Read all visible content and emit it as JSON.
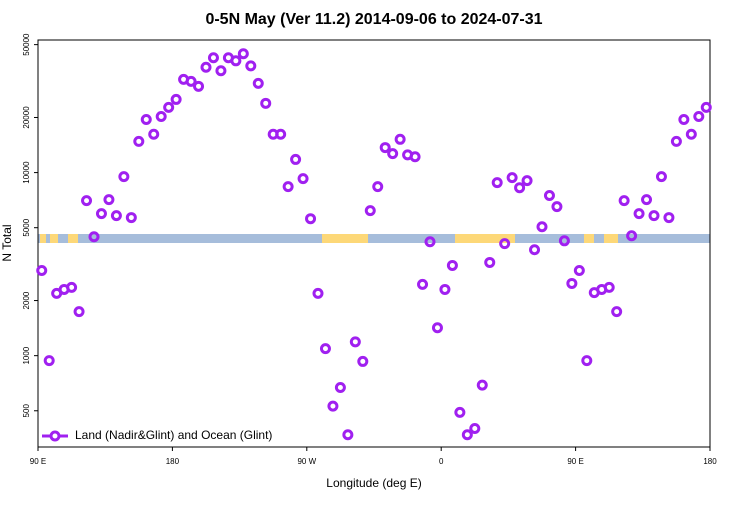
{
  "chart_data": {
    "type": "scatter",
    "title": "0-5N May (Ver 11.2)   2014-09-06 to 2024-07-31",
    "x_label": "Longitude (deg E)",
    "y_label": "N Total",
    "log_y": true,
    "legend_position": "bottom-left",
    "xlim": [
      90,
      540
    ],
    "xticks": [
      {
        "value": 90,
        "label": "90 E"
      },
      {
        "value": 180,
        "label": "180"
      },
      {
        "value": 270,
        "label": "90 W"
      },
      {
        "value": 360,
        "label": "0"
      },
      {
        "value": 450,
        "label": "90 E"
      },
      {
        "value": 540,
        "label": "180"
      }
    ],
    "ylim": [
      317,
      53000
    ],
    "yticks": [
      500,
      1000,
      2000,
      5000,
      10000,
      20000,
      50000
    ],
    "series": [
      {
        "name": "Land (Nadir&Glint) and Ocean (Glint)",
        "color": "#a020f0",
        "x": [
          92.5,
          97.5,
          102.5,
          107.5,
          112.5,
          117.5,
          122.5,
          127.5,
          132.5,
          137.5,
          142.5,
          147.5,
          152.5,
          157.5,
          162.5,
          167.5,
          172.5,
          177.5,
          182.5,
          187.5,
          192.5,
          197.5,
          202.5,
          207.5,
          212.5,
          217.5,
          222.5,
          227.5,
          232.5,
          237.5,
          242.5,
          247.5,
          252.5,
          257.5,
          262.5,
          267.5,
          272.5,
          277.5,
          282.5,
          287.5,
          292.5,
          297.5,
          302.5,
          307.5,
          312.5,
          317.5,
          322.5,
          327.5,
          332.5,
          337.5,
          342.5,
          347.5,
          352.5,
          357.5,
          362.5,
          367.5,
          372.5,
          377.5,
          382.5,
          387.5,
          392.5,
          397.5,
          402.5,
          407.5,
          412.5,
          417.5,
          422.5,
          427.5,
          432.5,
          437.5,
          442.5,
          447.5,
          452.5,
          457.5,
          462.5,
          467.5,
          472.5,
          477.5,
          482.5,
          487.5,
          492.5,
          497.5,
          502.5,
          507.5,
          512.5,
          517.5,
          522.5,
          527.5,
          532.5,
          537.5
        ],
        "values": [
          2920,
          940,
          2190,
          2300,
          2360,
          1740,
          7030,
          4460,
          5970,
          7120,
          5820,
          9510,
          5680,
          14800,
          19500,
          16200,
          20250,
          22700,
          25100,
          32300,
          31500,
          29600,
          37600,
          42400,
          36000,
          42400,
          40800,
          44600,
          38300,
          30700,
          23900,
          16200,
          16200,
          8380,
          11800,
          9270,
          5600,
          2190,
          1093,
          530,
          670,
          370,
          1190,
          930,
          6200,
          8380,
          13700,
          12700,
          15200,
          12500,
          12200,
          2450,
          4190,
          1420,
          2300,
          3110,
          490,
          370,
          400,
          690,
          3230,
          8810,
          4090,
          9390,
          8270,
          9040,
          3790,
          5060,
          7500,
          6520,
          4240,
          2480,
          2920,
          940,
          2210,
          2300,
          2360,
          1740,
          7030,
          4520,
          5970,
          7120,
          5820,
          9510,
          5680,
          14800,
          19500,
          16200,
          20250,
          22700
        ]
      }
    ]
  }
}
